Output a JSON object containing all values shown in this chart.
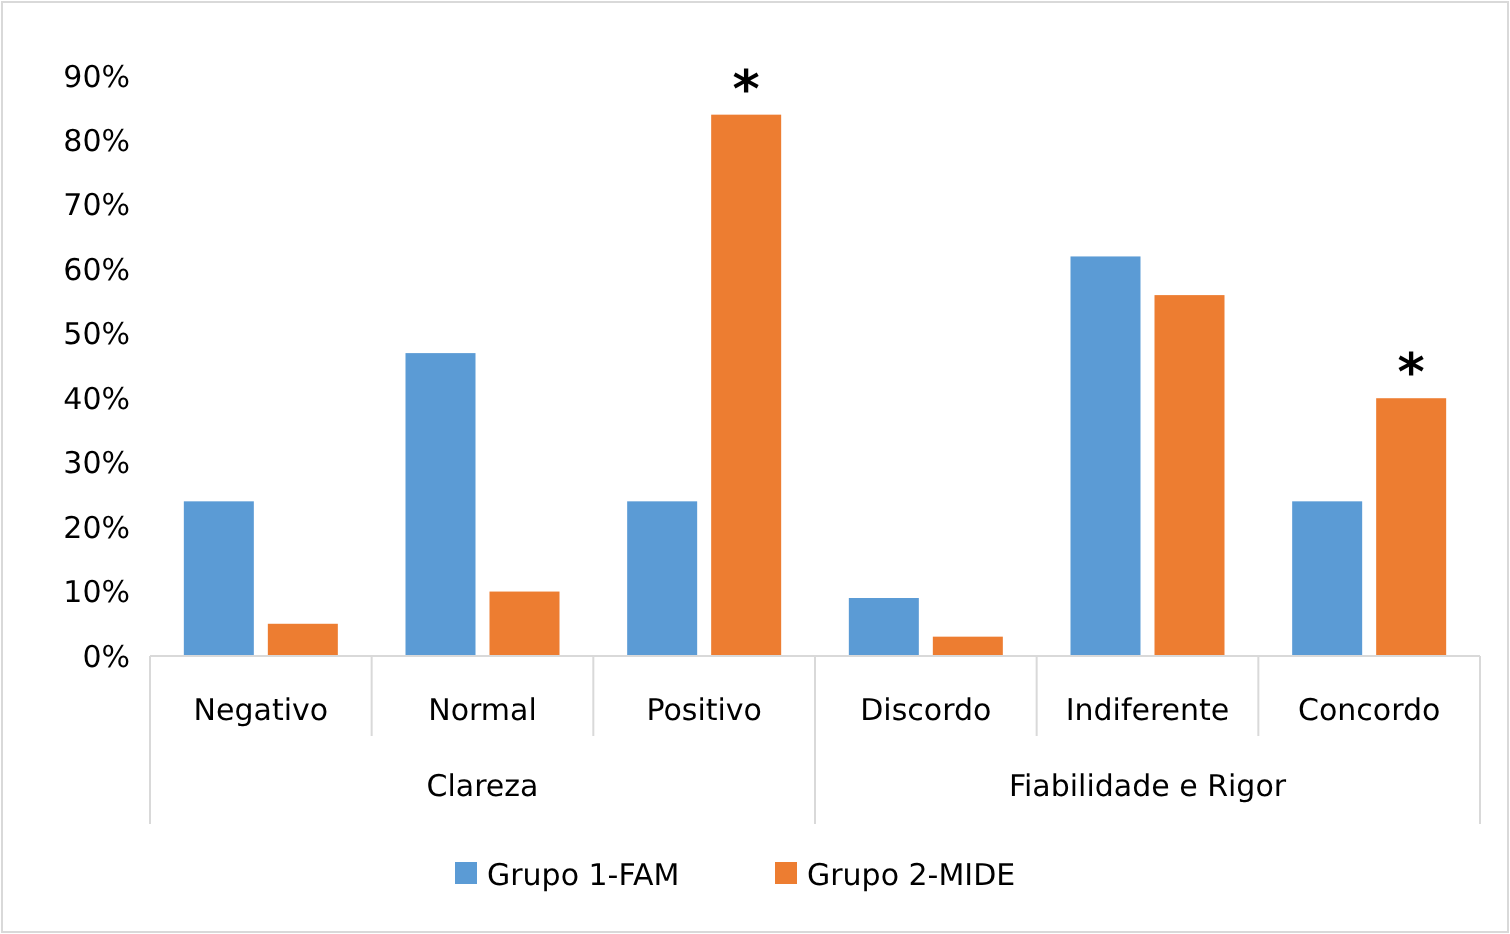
{
  "chart_data": {
    "type": "bar",
    "categories": [
      "Negativo",
      "Normal",
      "Positivo",
      "Discordo",
      "Indiferente",
      "Concordo"
    ],
    "series": [
      {
        "name": "Grupo 1-FAM",
        "color": "#5b9bd5",
        "values": [
          24,
          47,
          24,
          9,
          62,
          24
        ]
      },
      {
        "name": "Grupo 2-MIDE",
        "color": "#ed7d31",
        "values": [
          5,
          10,
          84,
          3,
          56,
          40
        ]
      }
    ],
    "ylim": [
      0,
      90
    ],
    "yticks": [
      {
        "value": 0,
        "label": "0%"
      },
      {
        "value": 10,
        "label": "10%"
      },
      {
        "value": 20,
        "label": "20%"
      },
      {
        "value": 30,
        "label": "30%"
      },
      {
        "value": 40,
        "label": "40%"
      },
      {
        "value": 50,
        "label": "50%"
      },
      {
        "value": 60,
        "label": "60%"
      },
      {
        "value": 70,
        "label": "70%"
      },
      {
        "value": 80,
        "label": "80%"
      },
      {
        "value": 90,
        "label": "90%"
      }
    ],
    "annotations": [
      "Clareza",
      "Fiabilidade e Rigor",
      {
        "text": "*",
        "x": "Positivo",
        "y": 84
      },
      {
        "text": "*",
        "x": "Concordo",
        "y": 40
      }
    ],
    "grid": false,
    "legend": "bottom"
  }
}
